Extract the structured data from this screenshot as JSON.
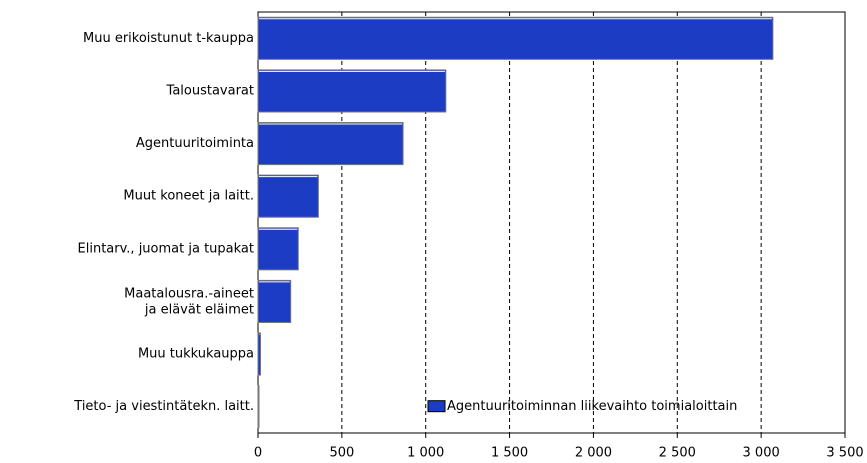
{
  "chart_data": {
    "type": "barh",
    "categories": [
      "Muu erikoistunut t-kauppa",
      "Taloustavarat",
      "Agentuuritoiminta",
      "Muut koneet ja laitt.",
      "Elintarv., juomat ja tupakat",
      "Maatalousra.-aineet\nja elävät eläimet",
      "Muu tukkukauppa",
      "Tieto- ja viestintätekn. laitt."
    ],
    "series": [
      {
        "name": "Agentuuritoiminnan liikevaihto toimialoittain",
        "color": "#1c3cc4",
        "values": [
          3070,
          1120,
          865,
          360,
          240,
          195,
          15,
          2
        ]
      }
    ],
    "xlim": [
      0,
      3500
    ],
    "xticks": [
      0,
      500,
      {
        "value": 1000,
        "label": "1 000"
      },
      {
        "value": 1500,
        "label": "1 500"
      },
      {
        "value": 2000,
        "label": "2 000"
      },
      {
        "value": 2500,
        "label": "2 500"
      },
      {
        "value": 3000,
        "label": "3 000"
      },
      {
        "value": 3500,
        "label": "3 500"
      }
    ],
    "grid": true,
    "legend": "lower right"
  }
}
